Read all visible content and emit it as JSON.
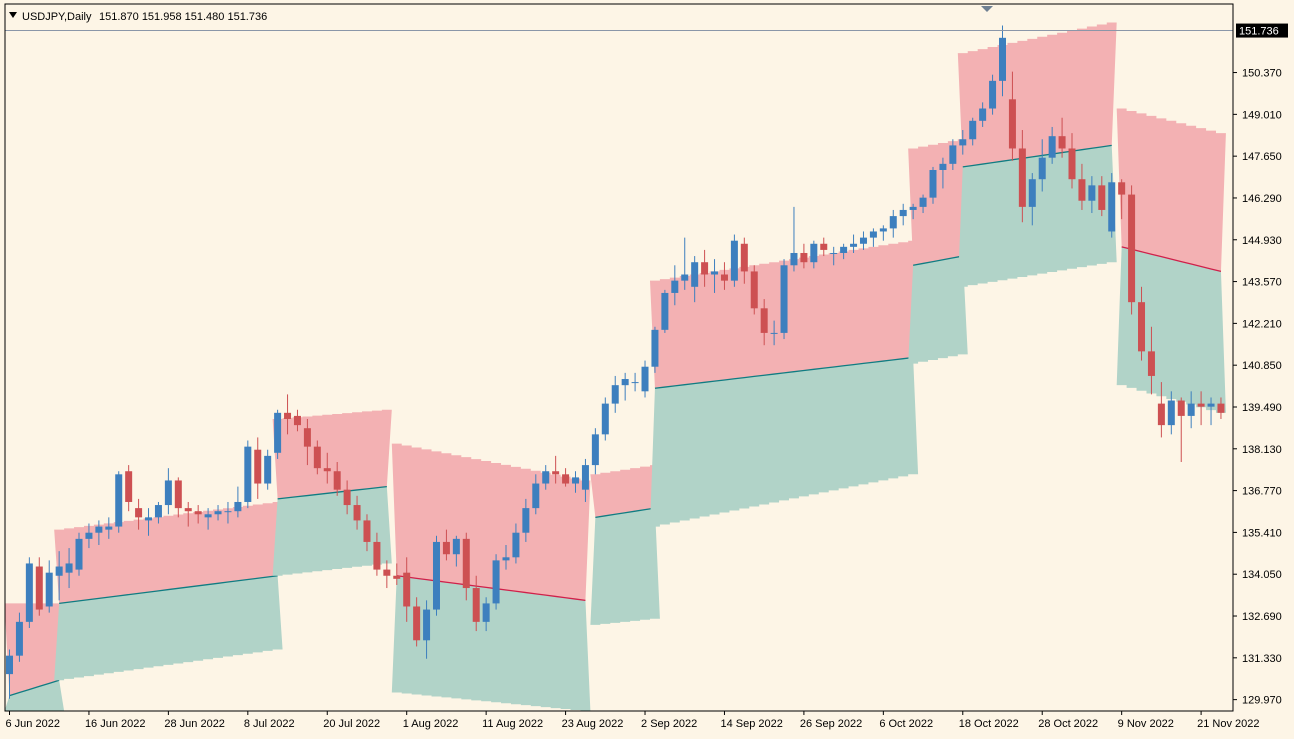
{
  "window": {
    "symbol_label": "USDJPY,Daily",
    "ohlc_label": "151.870 151.958 151.480 151.736"
  },
  "colors": {
    "background": "#fdf5e6",
    "upper_band": "#f3b1b3",
    "lower_band": "#b1d3c8",
    "bull_candle": "#3d7fbe",
    "bear_candle": "#cd5052",
    "mid_line_up": "#107c82",
    "mid_line_down": "#d0204a",
    "price_line": "#8a96a8",
    "axis": "#000000"
  },
  "chart_data": {
    "type": "candlestick",
    "symbol": "USDJPY",
    "timeframe": "Daily",
    "current_price": 151.736,
    "ylim": [
      129.6,
      152.6
    ],
    "y_ticks": [
      129.97,
      131.33,
      132.69,
      134.05,
      135.41,
      136.77,
      138.13,
      139.49,
      140.85,
      142.21,
      143.57,
      144.93,
      146.29,
      147.65,
      149.01,
      150.37
    ],
    "x_ticks": [
      {
        "label": "6 Jun 2022",
        "bar": 0
      },
      {
        "label": "16 Jun 2022",
        "bar": 8
      },
      {
        "label": "28 Jun 2022",
        "bar": 16
      },
      {
        "label": "8 Jul 2022",
        "bar": 24
      },
      {
        "label": "20 Jul 2022",
        "bar": 32
      },
      {
        "label": "1 Aug 2022",
        "bar": 40
      },
      {
        "label": "11 Aug 2022",
        "bar": 48
      },
      {
        "label": "23 Aug 2022",
        "bar": 56
      },
      {
        "label": "2 Sep 2022",
        "bar": 64
      },
      {
        "label": "14 Sep 2022",
        "bar": 72
      },
      {
        "label": "26 Sep 2022",
        "bar": 80
      },
      {
        "label": "6 Oct 2022",
        "bar": 88
      },
      {
        "label": "18 Oct 2022",
        "bar": 96
      },
      {
        "label": "28 Oct 2022",
        "bar": 104
      },
      {
        "label": "9 Nov 2022",
        "bar": 112
      },
      {
        "label": "21 Nov 2022",
        "bar": 120
      }
    ],
    "candles": [
      [
        130.8,
        131.6,
        130.0,
        131.4
      ],
      [
        131.4,
        132.8,
        131.2,
        132.5
      ],
      [
        132.5,
        134.6,
        132.3,
        134.4
      ],
      [
        134.3,
        134.6,
        132.7,
        132.9
      ],
      [
        133.0,
        134.5,
        132.8,
        134.1
      ],
      [
        134.0,
        134.8,
        133.2,
        134.3
      ],
      [
        134.1,
        134.9,
        133.6,
        134.4
      ],
      [
        134.2,
        135.4,
        134.0,
        135.2
      ],
      [
        135.2,
        135.7,
        134.9,
        135.4
      ],
      [
        135.4,
        135.8,
        135.0,
        135.6
      ],
      [
        135.5,
        135.9,
        135.2,
        135.6
      ],
      [
        135.6,
        137.4,
        135.4,
        137.3
      ],
      [
        137.4,
        137.6,
        136.1,
        136.4
      ],
      [
        136.2,
        136.5,
        135.5,
        135.9
      ],
      [
        135.8,
        136.2,
        135.3,
        135.9
      ],
      [
        135.9,
        136.4,
        135.7,
        136.3
      ],
      [
        136.3,
        137.5,
        136.0,
        137.1
      ],
      [
        137.1,
        137.2,
        135.9,
        136.2
      ],
      [
        136.2,
        136.4,
        135.6,
        136.1
      ],
      [
        136.1,
        136.3,
        135.7,
        136.0
      ],
      [
        135.9,
        136.2,
        135.5,
        136.0
      ],
      [
        136.0,
        136.3,
        135.8,
        136.1
      ],
      [
        136.1,
        136.4,
        135.7,
        136.1
      ],
      [
        136.1,
        136.9,
        135.9,
        136.4
      ],
      [
        136.4,
        138.4,
        136.2,
        138.2
      ],
      [
        138.1,
        138.5,
        136.5,
        137.0
      ],
      [
        137.0,
        138.1,
        136.8,
        137.9
      ],
      [
        138.0,
        139.4,
        137.8,
        139.3
      ],
      [
        139.3,
        139.9,
        138.6,
        139.1
      ],
      [
        139.2,
        139.4,
        138.7,
        138.9
      ],
      [
        138.8,
        139.1,
        137.6,
        138.2
      ],
      [
        138.2,
        138.4,
        137.3,
        137.5
      ],
      [
        137.5,
        138.0,
        137.0,
        137.4
      ],
      [
        137.4,
        137.7,
        136.6,
        136.8
      ],
      [
        136.8,
        137.1,
        136.0,
        136.3
      ],
      [
        136.3,
        136.6,
        135.5,
        135.8
      ],
      [
        135.8,
        136.0,
        134.8,
        135.1
      ],
      [
        135.1,
        135.4,
        134.0,
        134.2
      ],
      [
        134.2,
        134.5,
        133.6,
        134.0
      ],
      [
        134.0,
        134.4,
        133.7,
        133.9
      ],
      [
        134.1,
        134.6,
        132.5,
        133.0
      ],
      [
        133.0,
        133.3,
        131.7,
        131.9
      ],
      [
        131.9,
        133.2,
        131.3,
        132.9
      ],
      [
        132.9,
        135.3,
        132.7,
        135.1
      ],
      [
        135.1,
        135.5,
        134.5,
        134.7
      ],
      [
        134.7,
        135.3,
        134.3,
        135.2
      ],
      [
        135.2,
        135.4,
        133.2,
        133.6
      ],
      [
        133.6,
        134.0,
        132.2,
        132.5
      ],
      [
        132.5,
        133.3,
        132.2,
        133.1
      ],
      [
        133.1,
        134.7,
        132.9,
        134.5
      ],
      [
        134.5,
        135.0,
        134.2,
        134.6
      ],
      [
        134.6,
        135.7,
        134.4,
        135.4
      ],
      [
        135.4,
        136.5,
        135.1,
        136.2
      ],
      [
        136.2,
        137.3,
        136.0,
        137.0
      ],
      [
        137.0,
        137.6,
        136.8,
        137.4
      ],
      [
        137.4,
        137.9,
        137.0,
        137.3
      ],
      [
        137.3,
        137.5,
        136.9,
        137.0
      ],
      [
        137.0,
        137.4,
        136.7,
        137.2
      ],
      [
        136.8,
        137.8,
        136.4,
        137.6
      ],
      [
        137.6,
        138.8,
        137.3,
        138.6
      ],
      [
        138.6,
        139.8,
        138.4,
        139.6
      ],
      [
        139.6,
        140.5,
        139.3,
        140.2
      ],
      [
        140.2,
        140.6,
        139.7,
        140.4
      ],
      [
        140.3,
        140.6,
        140.0,
        140.3
      ],
      [
        140.0,
        141.0,
        139.8,
        140.8
      ],
      [
        140.8,
        142.1,
        140.6,
        142.0
      ],
      [
        142.0,
        143.3,
        141.9,
        143.2
      ],
      [
        143.2,
        144.1,
        142.8,
        143.6
      ],
      [
        143.6,
        145.0,
        143.3,
        143.8
      ],
      [
        143.4,
        144.4,
        142.9,
        144.2
      ],
      [
        144.2,
        144.6,
        143.4,
        143.8
      ],
      [
        143.8,
        144.3,
        143.2,
        143.9
      ],
      [
        143.8,
        144.2,
        143.3,
        143.6
      ],
      [
        143.6,
        145.1,
        143.4,
        144.9
      ],
      [
        144.8,
        145.0,
        143.5,
        143.9
      ],
      [
        143.9,
        144.1,
        142.5,
        142.7
      ],
      [
        142.7,
        143.0,
        141.5,
        141.9
      ],
      [
        141.9,
        142.3,
        141.5,
        141.9
      ],
      [
        141.9,
        144.3,
        141.7,
        144.1
      ],
      [
        144.1,
        146.0,
        143.9,
        144.5
      ],
      [
        144.5,
        144.8,
        144.0,
        144.2
      ],
      [
        144.2,
        144.9,
        144.0,
        144.8
      ],
      [
        144.8,
        145.0,
        144.4,
        144.6
      ],
      [
        144.5,
        144.7,
        144.1,
        144.5
      ],
      [
        144.5,
        144.8,
        144.3,
        144.7
      ],
      [
        144.7,
        145.1,
        144.5,
        144.8
      ],
      [
        144.8,
        145.2,
        144.6,
        145.0
      ],
      [
        145.0,
        145.3,
        144.7,
        145.2
      ],
      [
        145.2,
        145.4,
        144.9,
        145.3
      ],
      [
        145.3,
        145.9,
        145.0,
        145.7
      ],
      [
        145.7,
        146.1,
        145.4,
        145.9
      ],
      [
        145.9,
        146.1,
        145.6,
        146.0
      ],
      [
        146.0,
        146.4,
        145.8,
        146.3
      ],
      [
        146.3,
        147.3,
        146.1,
        147.2
      ],
      [
        147.2,
        147.6,
        146.6,
        147.4
      ],
      [
        147.4,
        148.2,
        147.2,
        148.0
      ],
      [
        148.0,
        148.5,
        147.7,
        148.2
      ],
      [
        148.2,
        148.9,
        148.0,
        148.8
      ],
      [
        148.8,
        149.4,
        148.6,
        149.2
      ],
      [
        149.2,
        150.3,
        149.0,
        150.1
      ],
      [
        150.1,
        151.9,
        149.6,
        151.5
      ],
      [
        149.5,
        150.4,
        147.5,
        147.9
      ],
      [
        147.9,
        148.5,
        145.5,
        146.0
      ],
      [
        146.0,
        147.1,
        145.4,
        146.9
      ],
      [
        146.9,
        148.2,
        146.5,
        147.6
      ],
      [
        147.6,
        148.6,
        147.4,
        148.3
      ],
      [
        148.3,
        148.9,
        147.6,
        147.9
      ],
      [
        147.9,
        148.4,
        146.6,
        146.9
      ],
      [
        146.9,
        147.4,
        145.9,
        146.2
      ],
      [
        146.2,
        147.0,
        145.8,
        146.7
      ],
      [
        146.7,
        147.0,
        145.7,
        145.9
      ],
      [
        145.2,
        147.1,
        145.0,
        146.8
      ],
      [
        146.8,
        146.9,
        145.6,
        146.4
      ],
      [
        146.4,
        146.7,
        142.5,
        142.9
      ],
      [
        142.9,
        143.4,
        141.0,
        141.3
      ],
      [
        141.3,
        142.1,
        139.9,
        140.5
      ],
      [
        139.6,
        140.3,
        138.5,
        138.9
      ],
      [
        138.9,
        140.0,
        138.6,
        139.7
      ],
      [
        139.7,
        139.8,
        137.7,
        139.2
      ],
      [
        139.2,
        140.0,
        138.8,
        139.6
      ],
      [
        139.6,
        140.0,
        138.9,
        139.5
      ],
      [
        139.5,
        139.8,
        138.9,
        139.6
      ],
      [
        139.6,
        139.8,
        139.1,
        139.3
      ]
    ],
    "bands": [
      {
        "start_bar": 0,
        "end_bar": 5,
        "upper_start": 133.1,
        "upper_end": 133.1,
        "mid_start": 130.1,
        "mid_end": 130.6,
        "mid_jump_to": 130.6,
        "lower_start": 129.6,
        "lower_end": 129.6,
        "trend": "up"
      },
      {
        "start_bar": 5,
        "end_bar": 27,
        "upper_start": 135.5,
        "upper_end": 136.4,
        "mid_start": 133.1,
        "mid_end": 134.0,
        "lower_start": 130.6,
        "lower_end": 131.6,
        "trend": "up"
      },
      {
        "start_bar": 27,
        "end_bar": 38,
        "upper_start": 139.1,
        "upper_end": 139.4,
        "mid_start": 136.5,
        "mid_end": 136.9,
        "lower_start": 134.0,
        "lower_end": 134.4,
        "trend": "up"
      },
      {
        "start_bar": 39,
        "end_bar": 58,
        "upper_start": 138.3,
        "upper_end": 137.1,
        "mid_start": 134.0,
        "mid_end": 133.2,
        "lower_start": 130.2,
        "lower_end": 129.6,
        "trend": "down"
      },
      {
        "start_bar": 59,
        "end_bar": 65,
        "upper_start": 137.3,
        "upper_end": 137.6,
        "mid_start": 135.9,
        "mid_end": 136.2,
        "lower_start": 132.4,
        "lower_end": 132.6,
        "trend": "up"
      },
      {
        "start_bar": 65,
        "end_bar": 91,
        "upper_start": 143.6,
        "upper_end": 144.9,
        "mid_start": 140.1,
        "mid_end": 141.1,
        "lower_start": 135.6,
        "lower_end": 137.3,
        "trend": "up"
      },
      {
        "start_bar": 91,
        "end_bar": 96,
        "upper_start": 147.9,
        "upper_end": 148.2,
        "mid_start": 144.1,
        "mid_end": 144.4,
        "lower_start": 140.9,
        "lower_end": 141.2,
        "trend": "up"
      },
      {
        "start_bar": 96,
        "end_bar": 111,
        "upper_start": 151.0,
        "upper_end": 152.0,
        "mid_start": 147.3,
        "mid_end": 148.0,
        "lower_start": 143.4,
        "lower_end": 144.2,
        "trend": "up"
      },
      {
        "start_bar": 112,
        "end_bar": 122,
        "upper_start": 149.2,
        "upper_end": 148.4,
        "mid_start": 144.7,
        "mid_end": 143.9,
        "lower_start": 140.2,
        "lower_end": 139.3,
        "trend": "down"
      }
    ]
  }
}
